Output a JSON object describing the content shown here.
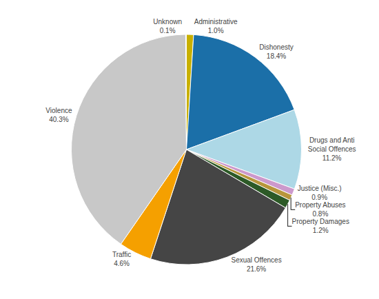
{
  "chart_data": {
    "type": "pie",
    "categories": [
      "Administrative",
      "Dishonesty",
      "Drugs and Anti\nSocial Offences",
      "Justice (Misc.)",
      "Property Abuses",
      "Property Damages",
      "Sexual Offences",
      "Traffic",
      "Violence",
      "Unknown"
    ],
    "values": [
      1.0,
      18.4,
      11.2,
      0.9,
      0.8,
      1.2,
      21.6,
      4.6,
      40.3,
      0.1
    ],
    "value_labels": [
      "1.0%",
      "18.4%",
      "11.2%",
      "0.9%",
      "0.8%",
      "1.2%",
      "21.6%",
      "4.6%",
      "40.3%",
      "0.1%"
    ],
    "colors": [
      "#c8b000",
      "#1b6fa8",
      "#add8e6",
      "#cc99cc",
      "#b8963c",
      "#2d5a27",
      "#454545",
      "#f5a000",
      "#c8c8c8",
      "#e0e0d0"
    ],
    "data_labels": true
  }
}
